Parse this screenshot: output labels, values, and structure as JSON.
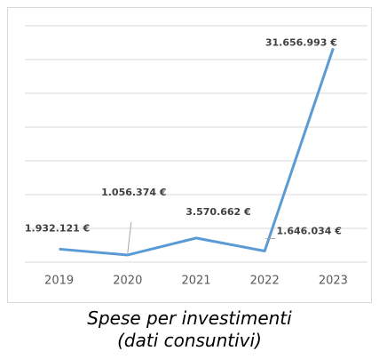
{
  "chart_data": {
    "type": "line",
    "title": "Spese per investimenti (dati consuntivi)",
    "categories": [
      "2019",
      "2020",
      "2021",
      "2022",
      "2023"
    ],
    "series": [
      {
        "name": "Spese per investimenti",
        "color": "#5b9bd5",
        "values": [
          1932121,
          1056374,
          3570662,
          1646034,
          31656993
        ],
        "value_labels": [
          "1.932.121 €",
          "1.056.374 €",
          "3.570.662 €",
          "1.646.034 €",
          "31.656.993 €"
        ]
      }
    ],
    "ylim": [
      0,
      35000000
    ],
    "yticks": [
      0,
      5000000,
      10000000,
      15000000,
      20000000,
      25000000,
      30000000,
      35000000
    ],
    "grid": true
  }
}
